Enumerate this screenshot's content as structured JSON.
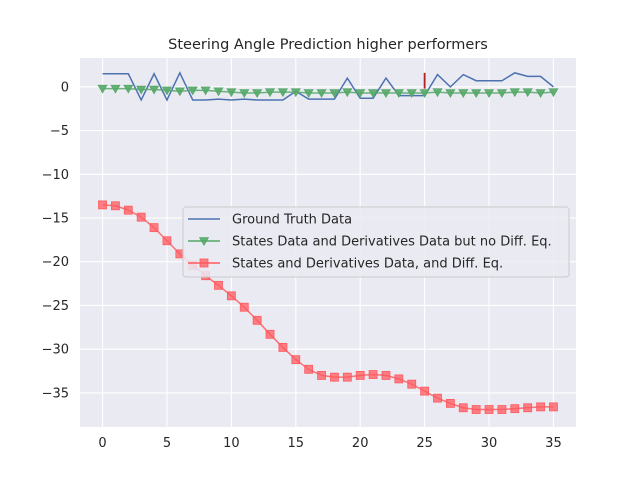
{
  "chart_data": {
    "type": "line",
    "title": "Steering Angle Prediction higher performers",
    "xlabel": "",
    "ylabel": "",
    "xlim": [
      -1.75,
      36.75
    ],
    "ylim": [
      -38.9,
      3.3
    ],
    "xticks": [
      0,
      5,
      10,
      15,
      20,
      25,
      30,
      35
    ],
    "yticks": [
      0,
      -5,
      -10,
      -15,
      -20,
      -25,
      -30,
      -35
    ],
    "grid": true,
    "legend_position": "center-right",
    "x": [
      0,
      1,
      2,
      3,
      4,
      5,
      6,
      7,
      8,
      9,
      10,
      11,
      12,
      13,
      14,
      15,
      16,
      17,
      18,
      19,
      20,
      21,
      22,
      23,
      24,
      25,
      26,
      27,
      28,
      29,
      30,
      31,
      32,
      33,
      34,
      35
    ],
    "series": [
      {
        "name": "Ground Truth Data",
        "color": "#4c72b0",
        "marker": "none",
        "values": [
          1.5,
          1.5,
          1.5,
          -1.5,
          1.5,
          -1.5,
          1.6,
          -1.5,
          -1.5,
          -1.4,
          -1.5,
          -1.4,
          -1.5,
          -1.5,
          -1.5,
          -0.5,
          -1.4,
          -1.4,
          -1.4,
          1.0,
          -1.3,
          -1.3,
          1.0,
          -1.0,
          -1.0,
          -1.0,
          1.4,
          0.0,
          1.4,
          0.7,
          0.7,
          0.7,
          1.6,
          1.2,
          1.2,
          0.0
        ]
      },
      {
        "name": "States Data and Derivatives Data but no Diff. Eq.",
        "color": "#55a868",
        "marker": "triangle-down",
        "values": [
          -0.2,
          -0.2,
          -0.2,
          -0.3,
          -0.3,
          -0.4,
          -0.5,
          -0.4,
          -0.4,
          -0.5,
          -0.6,
          -0.7,
          -0.7,
          -0.6,
          -0.6,
          -0.6,
          -0.7,
          -0.7,
          -0.7,
          -0.6,
          -0.7,
          -0.7,
          -0.7,
          -0.7,
          -0.7,
          -0.7,
          -0.6,
          -0.7,
          -0.7,
          -0.7,
          -0.7,
          -0.7,
          -0.6,
          -0.6,
          -0.7,
          -0.6
        ]
      },
      {
        "name": "States and Derivatives Data, and Diff. Eq.",
        "color": "#ff5a5f",
        "marker": "square",
        "values": [
          -13.5,
          -13.6,
          -14.1,
          -14.9,
          -16.1,
          -17.6,
          -19.1,
          -20.4,
          -21.6,
          -22.7,
          -23.9,
          -25.2,
          -26.7,
          -28.3,
          -29.8,
          -31.2,
          -32.3,
          -33.0,
          -33.2,
          -33.2,
          -33.0,
          -32.9,
          -33.0,
          -33.4,
          -34.0,
          -34.8,
          -35.6,
          -36.2,
          -36.7,
          -36.9,
          -36.9,
          -36.9,
          -36.8,
          -36.7,
          -36.6,
          -36.6
        ]
      }
    ],
    "annotations": [
      {
        "type": "vertical-mark",
        "x": 25,
        "y_from": -0.2,
        "y_to": 1.6,
        "color": "#b22222"
      }
    ]
  }
}
